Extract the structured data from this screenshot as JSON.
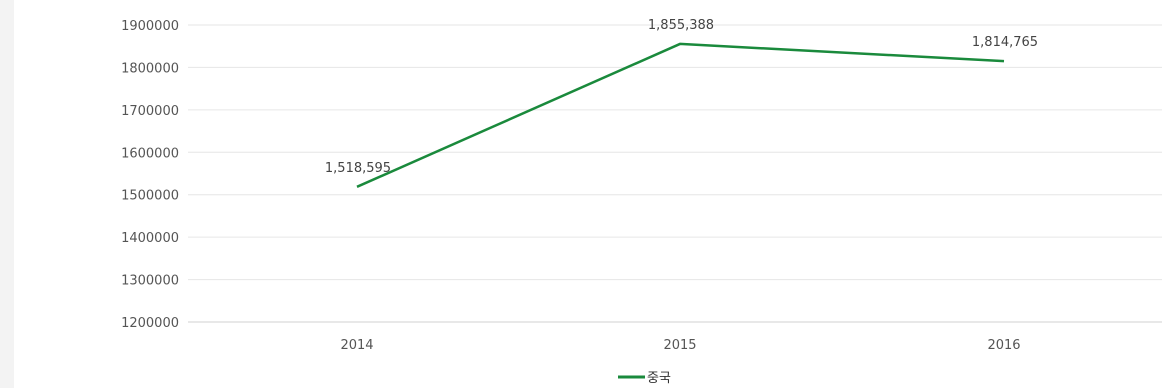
{
  "chart_data": {
    "type": "line",
    "x": [
      "2014",
      "2015",
      "2016"
    ],
    "series": [
      {
        "name": "중국",
        "values": [
          1518595,
          1855388,
          1814765
        ],
        "labels": [
          "1,518,595",
          "1,855,388",
          "1,814,765"
        ],
        "color": "#1a8a3c"
      }
    ],
    "ylim": [
      1200000,
      1900000
    ],
    "yticks": [
      "1200000",
      "1300000",
      "1400000",
      "1500000",
      "1600000",
      "1700000",
      "1800000",
      "1900000"
    ],
    "grid": true,
    "legend": "bottom-center"
  }
}
